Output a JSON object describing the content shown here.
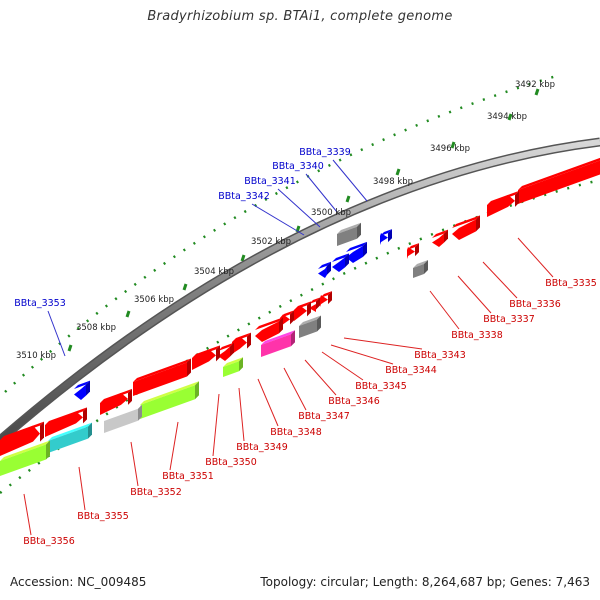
{
  "title": "Bradyrhizobium sp. BTAi1, complete genome",
  "footer": {
    "accession": "Accession: NC_009485",
    "summary": "Topology: circular; Length: 8,264,687 bp; Genes: 7,463"
  },
  "colors": {
    "backbone": "#808080",
    "ticks": "#228b22",
    "top_strand_label": "#0000cc",
    "bottom_strand_label": "#cc0000",
    "red_gene": "#ff0000",
    "blue_gene": "#0000ff",
    "gray_gene": "#808080",
    "lime_gene": "#99ff33",
    "magenta_gene": "#ff33aa",
    "cyan_gene": "#33cccc"
  },
  "scale_labels": [
    "3492 kbp",
    "3494 kbp",
    "3496 kbp",
    "3498 kbp",
    "3500 kbp",
    "3502 kbp",
    "3504 kbp",
    "3506 kbp",
    "3508 kbp",
    "3510 kbp"
  ],
  "genes": {
    "top": [
      "BBta_3339",
      "BBta_3340",
      "BBta_3341",
      "BBta_3342",
      "BBta_3353"
    ],
    "bottom": [
      "BBta_3335",
      "BBta_3336",
      "BBta_3337",
      "BBta_3338",
      "BBta_3343",
      "BBta_3344",
      "BBta_3345",
      "BBta_3346",
      "BBta_3347",
      "BBta_3348",
      "BBta_3349",
      "BBta_3350",
      "BBta_3351",
      "BBta_3352",
      "BBta_3355",
      "BBta_3356"
    ]
  }
}
